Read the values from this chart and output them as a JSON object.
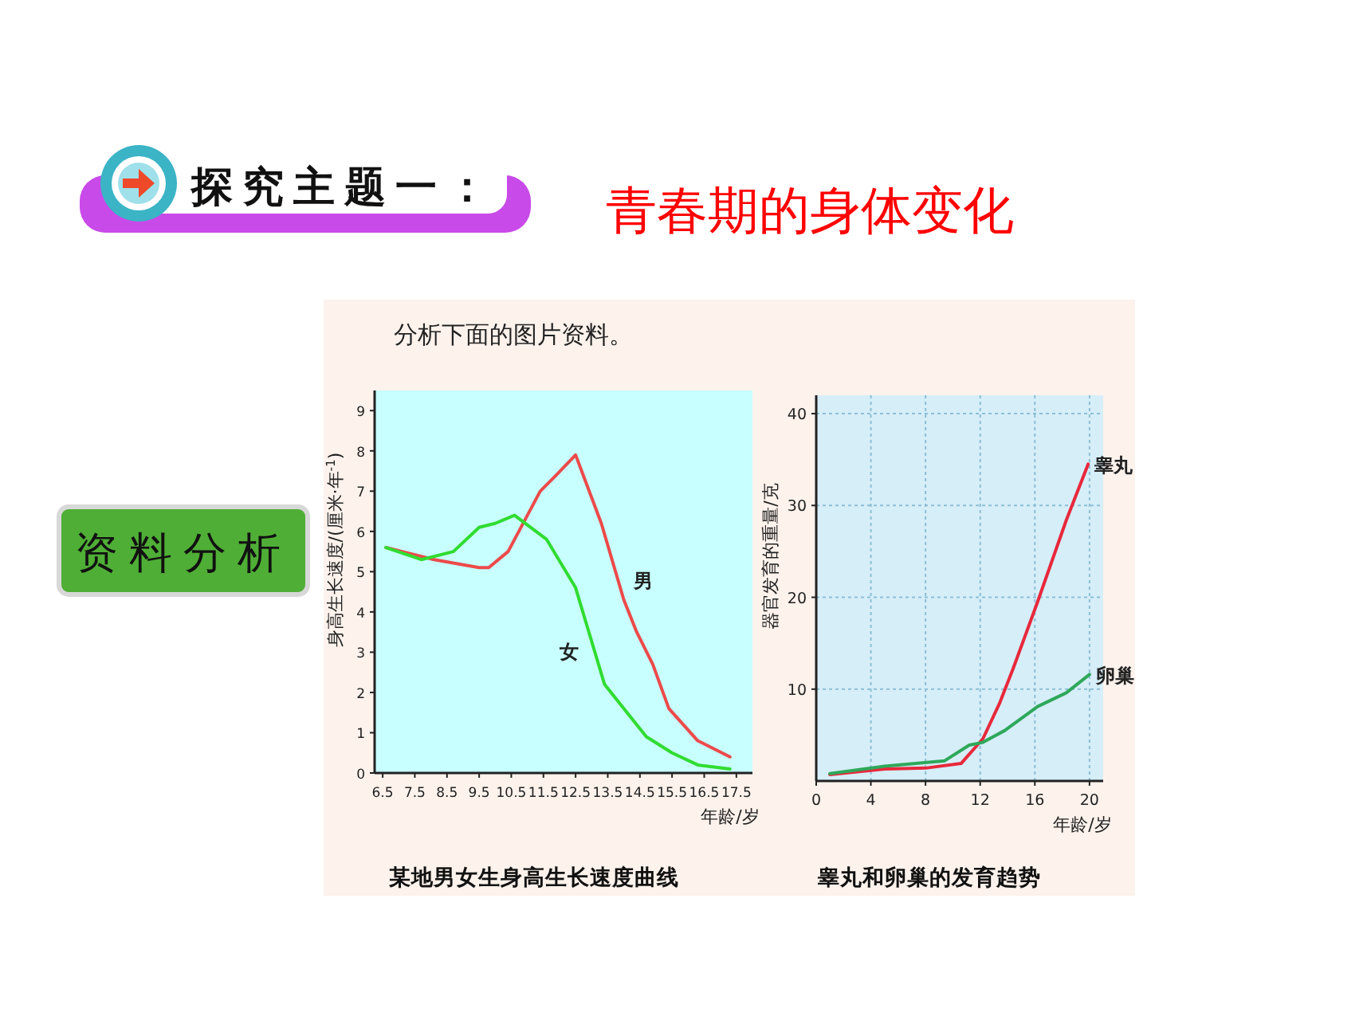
{
  "chart_data": [
    {
      "type": "other",
      "title": "青春期的身体变化",
      "annotations": [
        "探究主题一：",
        "资料分析",
        "分析下面的图片资料。"
      ]
    },
    {
      "type": "line",
      "title": "某地男女生身高生长速度曲线",
      "xlabel": "年龄/岁",
      "ylabel": "身高生长速度/(厘米·年$^{-1}$)",
      "xlim": [
        6.25,
        18
      ],
      "ylim": [
        0,
        9.5
      ],
      "xticks": [
        6.5,
        7.5,
        8.5,
        9.5,
        10.5,
        11.5,
        12.5,
        13.5,
        14.5,
        15.5,
        16.5,
        17.5
      ],
      "yticks": [
        0,
        1,
        2,
        3,
        4,
        5,
        6,
        7,
        8,
        9
      ],
      "series": [
        {
          "name": "男",
          "color": "#ec4a4a",
          "x": [
            6.6,
            8.1,
            8.8,
            9.5,
            9.8,
            10.4,
            11.4,
            11.9,
            12.5,
            13.3,
            14.0,
            14.4,
            14.9,
            15.4,
            16.3,
            17.3
          ],
          "values": [
            5.6,
            5.3,
            5.2,
            5.1,
            5.1,
            5.5,
            7.0,
            7.4,
            7.9,
            6.2,
            4.3,
            3.5,
            2.7,
            1.6,
            0.8,
            0.4
          ]
        },
        {
          "name": "女",
          "color": "#30dc30",
          "x": [
            6.6,
            7.7,
            8.7,
            9.5,
            10.0,
            10.6,
            11.6,
            12.5,
            12.8,
            13.4,
            14.1,
            14.7,
            15.5,
            16.3,
            17.3
          ],
          "values": [
            5.6,
            5.3,
            5.5,
            6.1,
            6.2,
            6.4,
            5.8,
            4.6,
            3.8,
            2.2,
            1.5,
            0.9,
            0.5,
            0.2,
            0.1
          ]
        }
      ]
    },
    {
      "type": "line",
      "title": "睾丸和卵巢的发育趋势",
      "xlabel": "年龄/岁",
      "ylabel": "器官发育的重量/克",
      "xlim": [
        0,
        21
      ],
      "ylim": [
        0,
        42
      ],
      "xticks": [
        0,
        4,
        8,
        12,
        16,
        20
      ],
      "yticks": [
        10,
        20,
        30,
        40
      ],
      "grid": true,
      "series": [
        {
          "name": "睾丸",
          "color": "#e8283c",
          "x": [
            1,
            5,
            8,
            10.6,
            12.2,
            13.4,
            14.4,
            16.2,
            18.3,
            19.9
          ],
          "values": [
            0.7,
            1.3,
            1.4,
            1.9,
            4.6,
            8.4,
            12.2,
            19.5,
            28.4,
            34.5
          ]
        },
        {
          "name": "卵巢",
          "color": "#2ea85a",
          "x": [
            1,
            5,
            9.4,
            11.2,
            12.2,
            13.8,
            16.2,
            18.3,
            20
          ],
          "values": [
            0.8,
            1.6,
            2.2,
            3.9,
            4.2,
            5.5,
            8.1,
            9.6,
            11.6
          ]
        }
      ]
    }
  ]
}
